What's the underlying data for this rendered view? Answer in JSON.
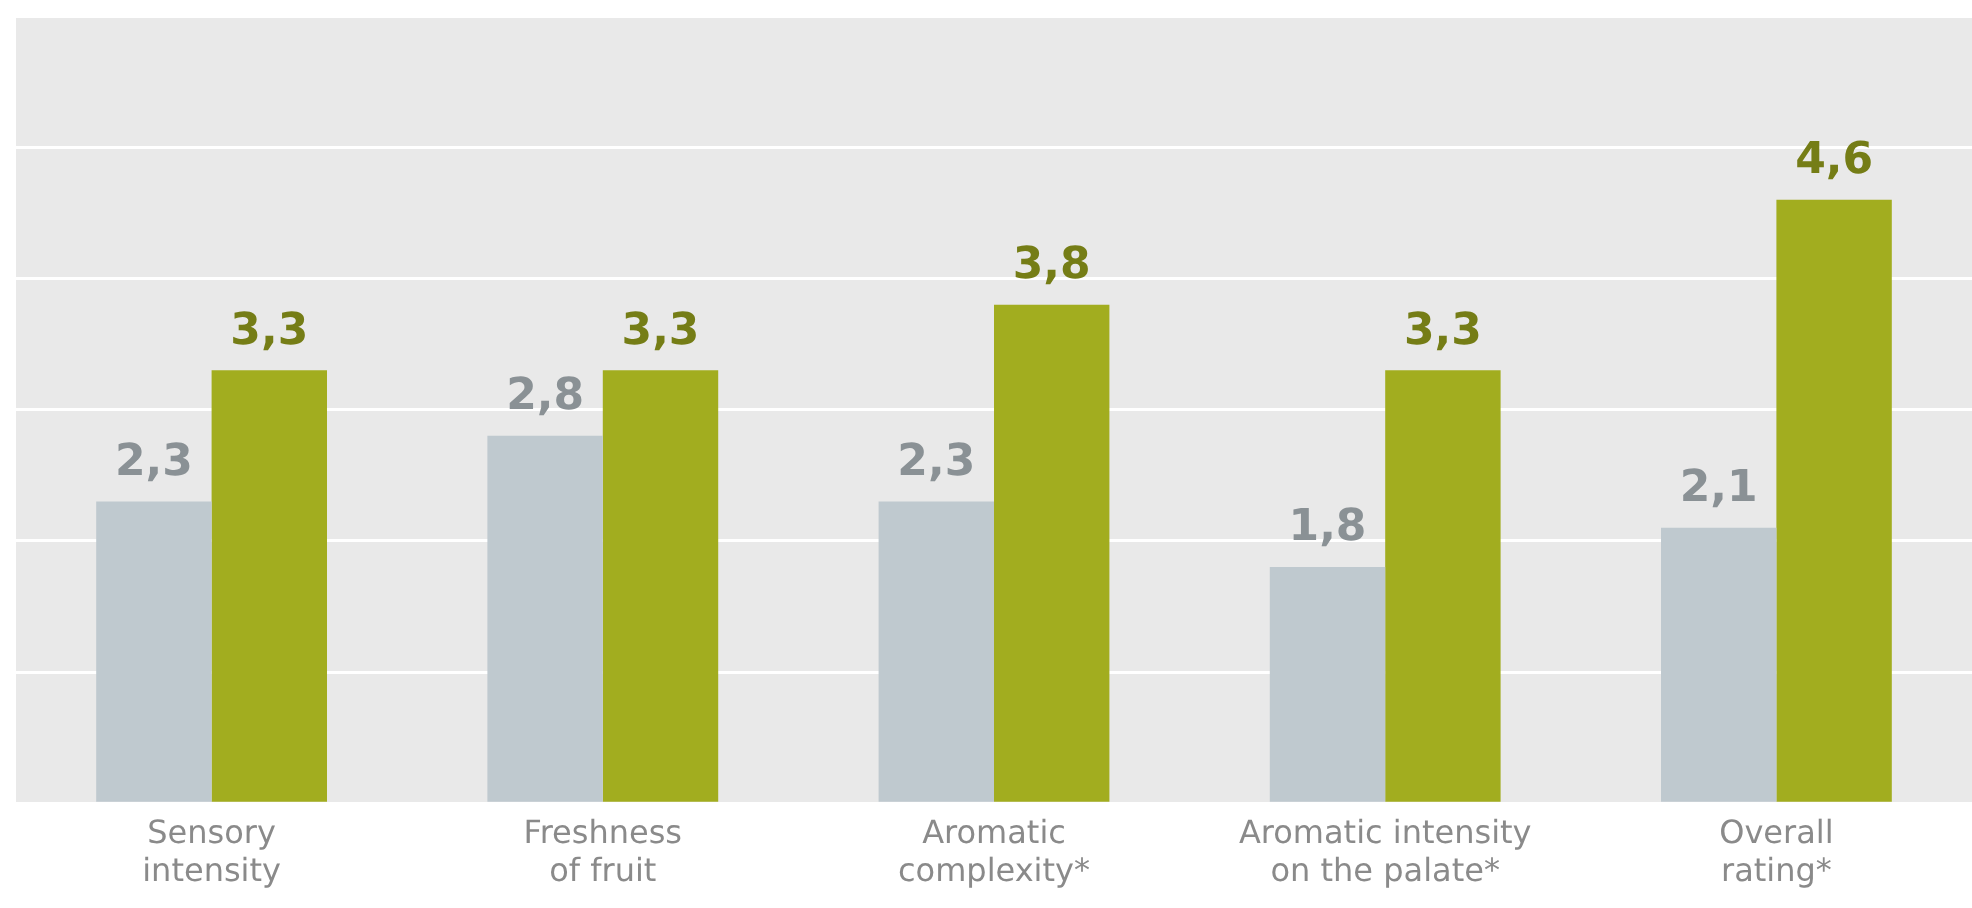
{
  "chart_data": {
    "type": "bar",
    "categories": [
      "Sensory intensity",
      "Freshness of fruit",
      "Aromatic complexity*",
      "Aromatic intensity on the palate*",
      "Overall rating*"
    ],
    "series": [
      {
        "color": "#bfc9cf",
        "values": [
          2.3,
          2.8,
          2.3,
          1.8,
          2.1
        ],
        "value_labels": [
          "2,3",
          "2,8",
          "2,3",
          "1,8",
          "2,1"
        ]
      },
      {
        "color": "#a2ad1f",
        "values": [
          3.3,
          3.3,
          3.8,
          3.3,
          4.6
        ],
        "value_labels": [
          "3,3",
          "3,3",
          "3,8",
          "3,3",
          "4,6"
        ]
      }
    ],
    "ylim": [
      0,
      6
    ],
    "yticks": [
      {
        "value": 0,
        "label": null
      },
      {
        "value": 1,
        "label": null
      },
      {
        "value": 2,
        "label": null
      },
      {
        "value": 3,
        "label": null
      },
      {
        "value": 4,
        "label": null
      },
      {
        "value": 5,
        "label": null
      },
      {
        "value": 6,
        "label": null
      }
    ],
    "grid": "y",
    "tick_labels": "x",
    "legend": false
  }
}
